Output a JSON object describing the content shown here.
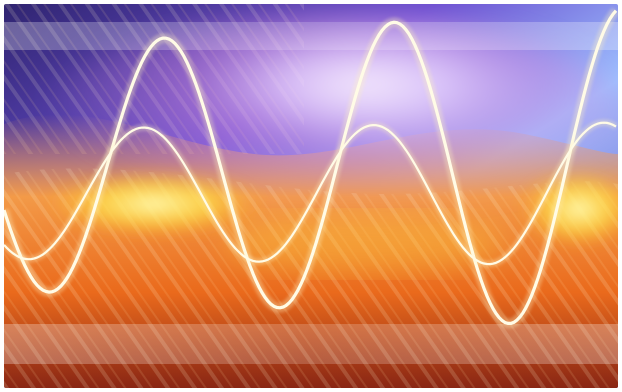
{
  "image": {
    "kind": "abstract-artwork",
    "palette": {
      "deep_purple": "#3b2a8c",
      "violet": "#7a5cd6",
      "sky_blue": "#8fb8ff",
      "lavender": "#e8d8ff",
      "magenta_haze": "#c86ad8",
      "orange": "#f08a2c",
      "hot_orange": "#e85a12",
      "yellow": "#ffe54a",
      "cream": "#fff3c8",
      "dark_red": "#7a1e12"
    },
    "elements": [
      "blue-purple-sky",
      "radiant-light-burst",
      "orange-glow-wave",
      "sine-wave-line-large",
      "sine-wave-line-small",
      "horizontal-band-top",
      "horizontal-band-bottom",
      "diagonal-streak-texture"
    ]
  }
}
